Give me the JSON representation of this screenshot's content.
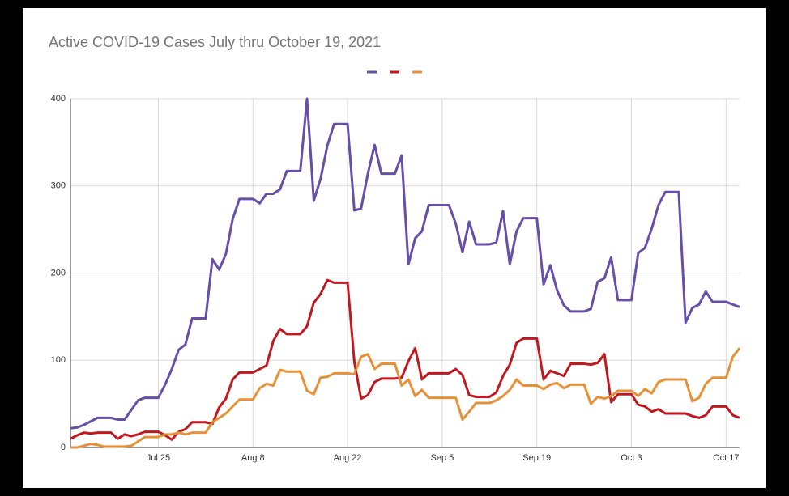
{
  "chart_data": {
    "type": "line",
    "title": "Active COVID-19 Cases July thru October 19, 2021",
    "categories": [
      null,
      null,
      null,
      null,
      null,
      null,
      null,
      null,
      null,
      null,
      null,
      null,
      null,
      "Jul 25",
      null,
      null,
      null,
      null,
      null,
      null,
      null,
      null,
      null,
      null,
      null,
      null,
      null,
      "Aug 8",
      null,
      null,
      null,
      null,
      null,
      null,
      null,
      null,
      null,
      null,
      null,
      null,
      null,
      "Aug 22",
      null,
      null,
      null,
      null,
      null,
      null,
      null,
      null,
      null,
      null,
      null,
      null,
      null,
      "Sep 5",
      null,
      null,
      null,
      null,
      null,
      null,
      null,
      null,
      null,
      null,
      null,
      null,
      null,
      "Sep 19",
      null,
      null,
      null,
      null,
      null,
      null,
      null,
      null,
      null,
      null,
      null,
      null,
      null,
      "Oct 3",
      null,
      null,
      null,
      null,
      null,
      null,
      null,
      null,
      null,
      null,
      null,
      null,
      null,
      "Oct 17",
      null,
      null
    ],
    "series": [
      {
        "color": "#674ea7",
        "values": [
          22,
          23,
          26,
          30,
          34,
          34,
          34,
          32,
          32,
          43,
          54,
          57,
          57,
          57,
          72,
          90,
          112,
          118,
          148,
          148,
          148,
          216,
          204,
          222,
          262,
          285,
          285,
          285,
          280,
          291,
          291,
          296,
          317,
          317,
          317,
          400,
          283,
          308,
          346,
          371,
          371,
          371,
          272,
          274,
          314,
          347,
          314,
          314,
          314,
          335,
          210,
          240,
          248,
          278,
          278,
          278,
          278,
          257,
          224,
          259,
          233,
          233,
          233,
          235,
          271,
          210,
          248,
          263,
          263,
          263,
          187,
          209,
          180,
          163,
          156,
          156,
          156,
          159,
          190,
          194,
          218,
          169,
          169,
          169,
          223,
          229,
          251,
          278,
          293,
          293,
          293,
          143,
          160,
          164,
          179,
          167,
          167,
          167,
          164,
          161
        ]
      },
      {
        "color": "#c0181f",
        "values": [
          10,
          14,
          17,
          16,
          17,
          17,
          17,
          10,
          15,
          13,
          15,
          18,
          18,
          18,
          14,
          9,
          18,
          21,
          29,
          29,
          29,
          27,
          46,
          56,
          78,
          86,
          86,
          86,
          90,
          94,
          122,
          136,
          130,
          130,
          130,
          139,
          166,
          176,
          192,
          189,
          189,
          189,
          98,
          56,
          60,
          75,
          79,
          79,
          79,
          80,
          99,
          114,
          78,
          85,
          85,
          85,
          85,
          90,
          83,
          60,
          58,
          58,
          58,
          63,
          82,
          95,
          120,
          125,
          125,
          125,
          78,
          88,
          85,
          82,
          96,
          96,
          96,
          95,
          97,
          107,
          52,
          61,
          61,
          61,
          49,
          47,
          41,
          44,
          39,
          39,
          39,
          39,
          36,
          34,
          37,
          47,
          47,
          47,
          37,
          34
        ]
      },
      {
        "color": "#e69138",
        "values": [
          0,
          0,
          2,
          4,
          3,
          1,
          1,
          1,
          1,
          2,
          7,
          12,
          12,
          12,
          15,
          15,
          17,
          15,
          17,
          17,
          17,
          29,
          34,
          39,
          47,
          55,
          55,
          55,
          68,
          73,
          71,
          89,
          87,
          87,
          87,
          65,
          61,
          80,
          81,
          85,
          85,
          85,
          84,
          104,
          107,
          90,
          96,
          96,
          96,
          71,
          78,
          59,
          66,
          57,
          57,
          57,
          57,
          57,
          32,
          41,
          51,
          51,
          51,
          54,
          59,
          66,
          78,
          71,
          71,
          71,
          67,
          72,
          74,
          68,
          72,
          72,
          72,
          50,
          58,
          56,
          59,
          65,
          65,
          65,
          59,
          67,
          62,
          75,
          78,
          78,
          78,
          78,
          53,
          57,
          73,
          80,
          80,
          80,
          104,
          114
        ]
      }
    ],
    "ylim": [
      0,
      400
    ],
    "yticks": [
      0,
      100,
      200,
      300,
      400
    ],
    "grid": true
  }
}
